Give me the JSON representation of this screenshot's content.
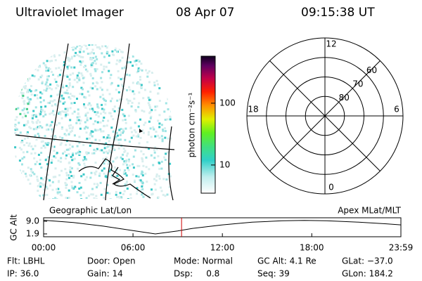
{
  "header": {
    "instrument": "Ultraviolet Imager",
    "date": "08 Apr 07",
    "time": "09:15:38 UT"
  },
  "colorbar": {
    "label": "photon cm⁻²s⁻¹",
    "log": true,
    "ylim": [
      3.5,
      576
    ],
    "yticks": [
      10,
      100
    ]
  },
  "polar": {
    "lat_lim": [
      90,
      50
    ],
    "lat_rings": [
      80,
      70,
      60
    ],
    "mlt_ticks": [
      12,
      18,
      6,
      0
    ]
  },
  "altitude": {
    "ylabel": "GC Alt",
    "left_title": "Geographic Lat/Lon",
    "right_title": "Apex MLat/MLT",
    "xlim": [
      0,
      23.983
    ],
    "ylim": [
      0.3,
      11.0
    ],
    "yticks": [
      {
        "value": 9.0,
        "label": "9.0"
      },
      {
        "value": 1.9,
        "label": "1.9"
      }
    ],
    "xticks": [
      {
        "value": 0,
        "label": "00:00"
      },
      {
        "value": 6,
        "label": "06:00"
      },
      {
        "value": 12,
        "label": "12:00"
      },
      {
        "value": 18,
        "label": "18:00"
      },
      {
        "value": 23.983,
        "label": "23:59"
      }
    ],
    "x": [
      0,
      2,
      4,
      6,
      7.5,
      9,
      10,
      12,
      14,
      16,
      17.5,
      19,
      21,
      23,
      23.983
    ],
    "values": [
      9.6,
      8.3,
      6.3,
      3.8,
      1.9,
      3.6,
      5.0,
      7.0,
      8.5,
      9.3,
      9.5,
      9.3,
      8.6,
      7.6,
      7.0
    ]
  },
  "info": [
    [
      "Flt: LBHL",
      "Door: Open",
      "Mode: Normal",
      "GC Alt: 4.1 Re",
      "GLat: −37.0"
    ],
    [
      "IP: 36.0",
      "Gain: 14",
      "Dsp:     0.8",
      "Seq: 39",
      "GLon: 184.2"
    ]
  ]
}
